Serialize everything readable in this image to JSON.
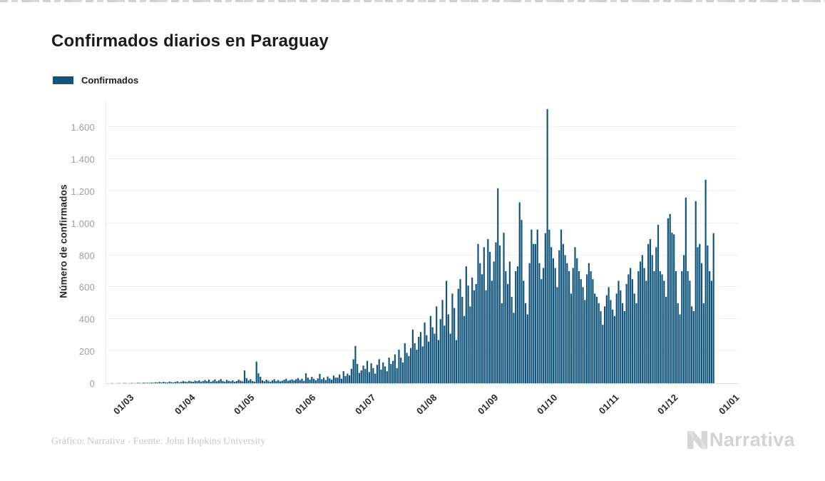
{
  "header": {
    "title": "Confirmados diarios en Paraguay"
  },
  "legend": {
    "label": "Confirmados",
    "swatch_color": "#11557C"
  },
  "footer": {
    "credit": "Gráfico: Narrativa - Fuente: John Hopkins University",
    "brand": "Narrativa"
  },
  "chart_data": {
    "type": "bar",
    "title": "Confirmados diarios en Paraguay",
    "series_name": "Confirmados",
    "ylabel": "Número de confirmados",
    "xlabel": "",
    "bar_color": "#11557C",
    "grid": "horizontal",
    "legend_position": "top-left",
    "ylim": [
      0,
      1774
    ],
    "y_ticks": [
      {
        "value": 0,
        "label": "0"
      },
      {
        "value": 200,
        "label": "200"
      },
      {
        "value": 400,
        "label": "400"
      },
      {
        "value": 600,
        "label": "600"
      },
      {
        "value": 800,
        "label": "800"
      },
      {
        "value": 1000,
        "label": "1.000"
      },
      {
        "value": 1200,
        "label": "1.200"
      },
      {
        "value": 1400,
        "label": "1.400"
      },
      {
        "value": 1600,
        "label": "1.600"
      }
    ],
    "x_ticks": [
      {
        "label": "01/03",
        "day_offset": 0
      },
      {
        "label": "01/04",
        "day_offset": 31
      },
      {
        "label": "01/05",
        "day_offset": 61
      },
      {
        "label": "01/06",
        "day_offset": 92
      },
      {
        "label": "01/07",
        "day_offset": 122
      },
      {
        "label": "01/08",
        "day_offset": 153
      },
      {
        "label": "01/09",
        "day_offset": 184
      },
      {
        "label": "01/10",
        "day_offset": 214
      },
      {
        "label": "01/11",
        "day_offset": 245
      },
      {
        "label": "01/12",
        "day_offset": 275
      },
      {
        "label": "01/01",
        "day_offset": 306
      }
    ],
    "x_start": "01/03",
    "values": [
      1,
      0,
      0,
      1,
      1,
      0,
      2,
      1,
      0,
      1,
      2,
      1,
      1,
      3,
      2,
      1,
      4,
      2,
      3,
      2,
      5,
      3,
      6,
      4,
      8,
      5,
      9,
      6,
      4,
      10,
      7,
      5,
      8,
      12,
      6,
      9,
      14,
      10,
      8,
      15,
      11,
      9,
      16,
      12,
      18,
      10,
      14,
      20,
      13,
      22,
      9,
      16,
      24,
      12,
      18,
      26,
      14,
      10,
      21,
      15,
      12,
      18,
      9,
      14,
      22,
      16,
      12,
      80,
      32,
      18,
      25,
      14,
      10,
      135,
      62,
      40,
      18,
      12,
      22,
      15,
      10,
      18,
      25,
      14,
      20,
      12,
      16,
      22,
      28,
      15,
      20,
      24,
      18,
      25,
      32,
      20,
      28,
      15,
      62,
      35,
      22,
      40,
      28,
      18,
      30,
      58,
      25,
      35,
      20,
      42,
      30,
      22,
      48,
      35,
      35,
      55,
      28,
      75,
      45,
      60,
      50,
      90,
      150,
      233,
      120,
      65,
      80,
      110,
      90,
      140,
      70,
      125,
      95,
      60,
      115,
      150,
      85,
      130,
      105,
      75,
      160,
      120,
      140,
      180,
      95,
      210,
      160,
      130,
      250,
      190,
      170,
      220,
      335,
      250,
      210,
      290,
      320,
      230,
      380,
      300,
      260,
      420,
      350,
      310,
      480,
      270,
      400,
      520,
      360,
      640,
      430,
      310,
      560,
      470,
      270,
      590,
      650,
      540,
      420,
      730,
      610,
      480,
      660,
      580,
      620,
      870,
      750,
      680,
      850,
      580,
      900,
      820,
      640,
      760,
      880,
      1218,
      860,
      500,
      940,
      700,
      620,
      760,
      540,
      440,
      700,
      730,
      1130,
      1020,
      640,
      500,
      430,
      750,
      960,
      870,
      870,
      960,
      750,
      650,
      720,
      937,
      1712,
      959,
      850,
      780,
      720,
      600,
      830,
      960,
      870,
      800,
      750,
      700,
      560,
      720,
      850,
      780,
      700,
      650,
      600,
      520,
      680,
      750,
      700,
      650,
      560,
      540,
      500,
      450,
      365,
      480,
      550,
      600,
      520,
      460,
      420,
      560,
      640,
      580,
      500,
      450,
      620,
      680,
      720,
      650,
      560,
      500,
      700,
      760,
      800,
      720,
      640,
      870,
      900,
      800,
      700,
      850,
      990,
      700,
      680,
      640,
      540,
      1030,
      1057,
      940,
      930,
      700,
      500,
      430,
      700,
      800,
      1160,
      700,
      640,
      480,
      450,
      1137,
      850,
      870,
      750,
      500,
      1271,
      860,
      700,
      640,
      937
    ]
  }
}
